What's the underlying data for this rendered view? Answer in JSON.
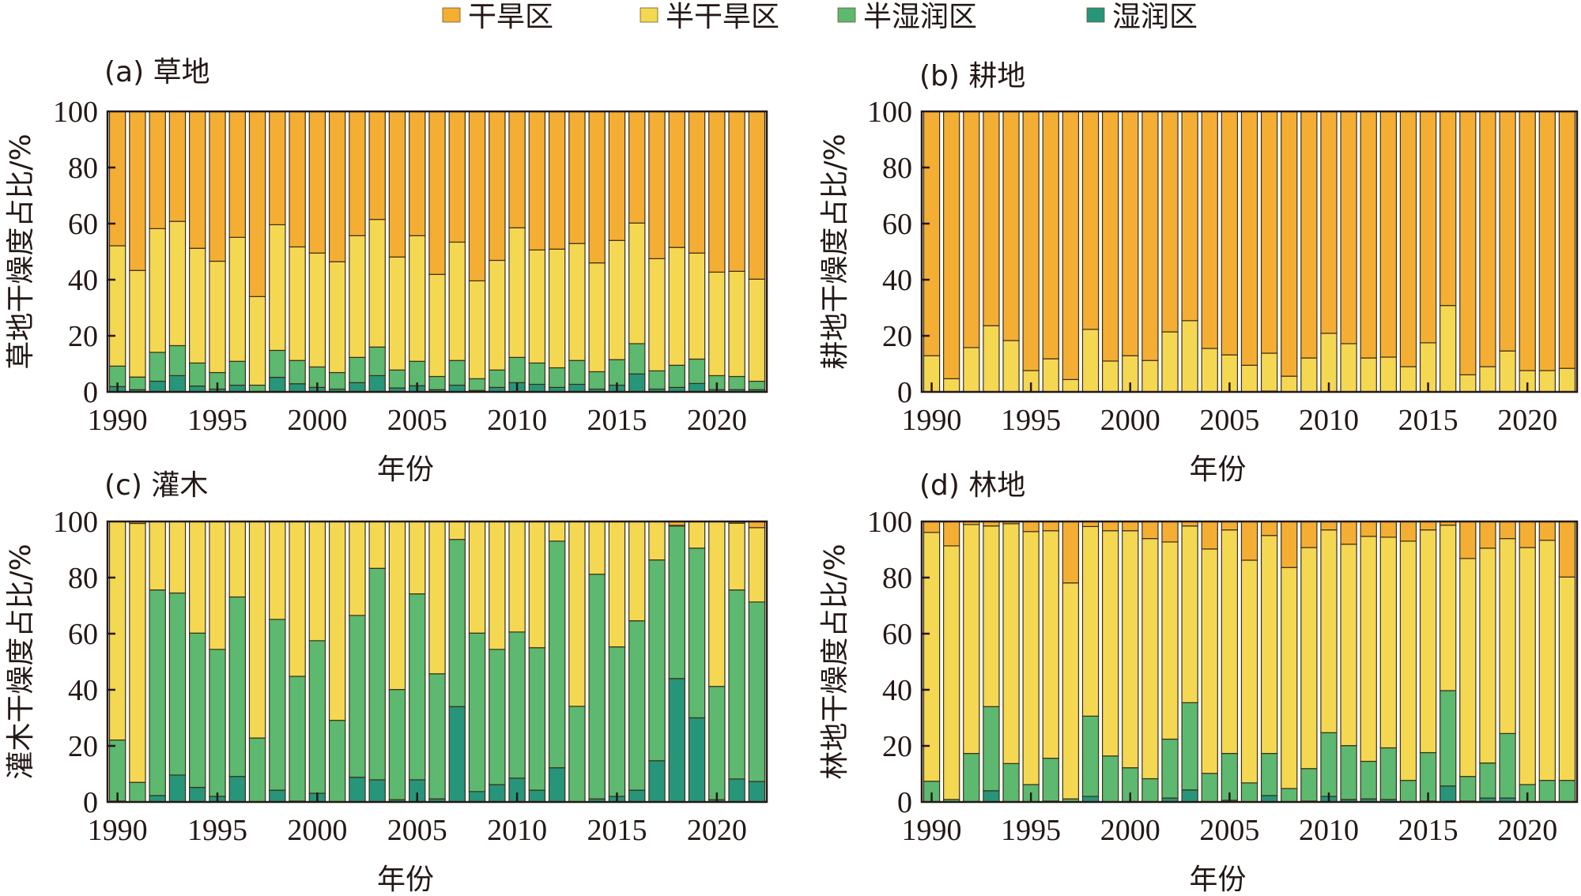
{
  "chart_data": {
    "type": "bar",
    "stacked": true,
    "legend": {
      "placement": "top-center",
      "entries": [
        {
          "name": "干旱区",
          "color": "#F4AE33"
        },
        {
          "name": "半干旱区",
          "color": "#F5D852"
        },
        {
          "name": "半湿润区",
          "color": "#5CB96F"
        },
        {
          "name": "湿润区",
          "color": "#279579"
        }
      ]
    },
    "years": [
      1990,
      1991,
      1992,
      1993,
      1994,
      1995,
      1996,
      1997,
      1998,
      1999,
      2000,
      2001,
      2002,
      2003,
      2004,
      2005,
      2006,
      2007,
      2008,
      2009,
      2010,
      2011,
      2012,
      2013,
      2014,
      2015,
      2016,
      2017,
      2018,
      2019,
      2020,
      2021,
      2022
    ],
    "x_ticks": [
      "1990",
      "1995",
      "2000",
      "2005",
      "2010",
      "2015",
      "2020"
    ],
    "y_ticks": [
      "0",
      "20",
      "40",
      "60",
      "80",
      "100"
    ],
    "ylim": [
      0,
      100
    ],
    "panels": [
      {
        "id": "a",
        "title": "(a) 草地",
        "xlabel": "年份",
        "ylabel": "草地干燥度占比/%",
        "series": [
          {
            "name": "湿润区",
            "values": [
              1.9,
              0.8,
              3.8,
              5.8,
              2.1,
              1.0,
              2.4,
              0,
              5.2,
              2.9,
              1.6,
              1.0,
              3.3,
              5.8,
              1.4,
              2.2,
              0.8,
              2.4,
              0.5,
              1.6,
              3.3,
              2.7,
              1.6,
              2.7,
              1.0,
              2.4,
              6.4,
              1.0,
              1.6,
              3.0,
              0.8,
              0.8,
              0.8
            ]
          },
          {
            "name": "半湿润区",
            "values": [
              7.3,
              4.5,
              10.3,
              10.7,
              8.2,
              5.9,
              8.5,
              2.4,
              9.6,
              8.3,
              7.3,
              5.9,
              9.0,
              10.2,
              6.4,
              8.7,
              4.7,
              8.8,
              4.2,
              6.2,
              9.0,
              7.6,
              7.0,
              8.5,
              6.2,
              9.1,
              10.8,
              6.5,
              7.9,
              8.7,
              5.0,
              4.7,
              3.0
            ]
          },
          {
            "name": "半干旱区",
            "values": [
              42.9,
              38.0,
              44.1,
              44.3,
              40.9,
              39.7,
              44.2,
              31.6,
              44.8,
              40.5,
              40.6,
              39.5,
              43.4,
              45.5,
              40.3,
              44.8,
              36.4,
              42.2,
              34.9,
              39.1,
              46.2,
              40.3,
              42.3,
              41.7,
              38.8,
              42.5,
              43.0,
              40.0,
              42.0,
              37.8,
              36.9,
              37.5,
              36.4
            ]
          },
          {
            "name": "干旱区",
            "values": [
              47.9,
              56.7,
              41.8,
              39.2,
              48.8,
              53.4,
              44.9,
              66.0,
              40.4,
              48.3,
              50.5,
              53.6,
              44.3,
              38.5,
              51.9,
              44.3,
              58.1,
              46.6,
              60.4,
              53.1,
              41.5,
              49.4,
              49.1,
              47.1,
              54.0,
              46.0,
              39.8,
              52.5,
              48.5,
              50.5,
              57.3,
              57.0,
              59.8
            ]
          }
        ]
      },
      {
        "id": "b",
        "title": "(b) 耕地",
        "xlabel": "年份",
        "ylabel": "耕地干燥度占比/%",
        "series": [
          {
            "name": "湿润区",
            "values": [
              0,
              0,
              0,
              0,
              0,
              0,
              0,
              0,
              0,
              0,
              0,
              0,
              0,
              0,
              0,
              0,
              0,
              0,
              0,
              0,
              0,
              0,
              0,
              0,
              0,
              0,
              0,
              0,
              0,
              0,
              0,
              0,
              0
            ]
          },
          {
            "name": "半湿润区",
            "values": [
              0,
              0,
              0,
              0,
              0,
              0,
              0,
              0,
              0,
              0,
              0,
              0,
              0,
              0,
              0,
              0,
              0,
              0.3,
              0,
              0,
              0,
              0,
              0,
              0,
              0,
              0,
              0,
              0,
              0.2,
              0,
              0,
              0,
              0
            ]
          },
          {
            "name": "半干旱区",
            "values": [
              12.9,
              4.7,
              15.8,
              23.6,
              18.3,
              7.6,
              11.8,
              4.4,
              22.3,
              11.0,
              12.9,
              11.2,
              21.4,
              25.4,
              15.5,
              13.2,
              9.5,
              13.5,
              5.6,
              12.1,
              20.9,
              17.2,
              12.1,
              12.4,
              9.0,
              17.5,
              30.8,
              6.1,
              8.8,
              14.6,
              7.6,
              7.6,
              8.4
            ]
          },
          {
            "name": "干旱区",
            "values": [
              87.1,
              95.3,
              84.2,
              76.4,
              81.7,
              92.4,
              88.2,
              95.6,
              77.7,
              89.0,
              87.1,
              88.8,
              78.6,
              74.6,
              84.5,
              86.8,
              90.5,
              86.2,
              94.4,
              87.9,
              79.1,
              82.8,
              87.9,
              87.6,
              91.0,
              82.5,
              69.2,
              93.9,
              91.0,
              85.4,
              92.4,
              92.4,
              91.6
            ]
          }
        ]
      },
      {
        "id": "c",
        "title": "(c) 灌木",
        "xlabel": "年份",
        "ylabel": "灌木干燥度占比/%",
        "series": [
          {
            "name": "湿润区",
            "values": [
              0.3,
              0,
              2.3,
              9.6,
              5.2,
              2.0,
              9.1,
              0,
              4.2,
              0.3,
              3.1,
              0,
              8.8,
              7.9,
              0.8,
              7.9,
              1.1,
              34.0,
              3.7,
              6.2,
              8.5,
              4.2,
              12.2,
              0,
              1.1,
              2.0,
              4.2,
              14.7,
              44.0,
              30.0,
              0.8,
              8.2,
              7.3
            ]
          },
          {
            "name": "半湿润区",
            "values": [
              21.8,
              7.0,
              73.3,
              64.9,
              55.0,
              52.4,
              64.0,
              22.8,
              60.9,
              44.5,
              54.4,
              29.1,
              57.7,
              75.4,
              39.3,
              66.3,
              44.6,
              59.6,
              56.5,
              48.2,
              52.1,
              50.8,
              80.8,
              34.1,
              80.1,
              53.3,
              60.4,
              71.6,
              54.4,
              60.5,
              40.4,
              67.4,
              64.0
            ]
          },
          {
            "name": "半干旱区",
            "values": [
              77.9,
              92.3,
              24.4,
              25.5,
              39.8,
              45.6,
              26.9,
              77.2,
              34.9,
              55.2,
              42.5,
              70.9,
              33.5,
              16.7,
              59.9,
              25.8,
              54.3,
              6.4,
              39.8,
              45.6,
              39.4,
              45.0,
              7.0,
              65.9,
              18.8,
              44.7,
              35.4,
              13.7,
              0.2,
              9.5,
              58.8,
              23.8,
              26.5
            ]
          },
          {
            "name": "干旱区",
            "values": [
              0,
              0.7,
              0,
              0,
              0,
              0,
              0,
              0,
              0,
              0,
              0,
              0,
              0,
              0,
              0,
              0,
              0,
              0,
              0,
              0,
              0,
              0,
              0,
              0,
              0,
              0,
              0,
              0,
              1.4,
              0,
              0,
              0.6,
              2.2
            ]
          }
        ]
      },
      {
        "id": "d",
        "title": "(d) 林地",
        "xlabel": "年份",
        "ylabel": "林地干燥度占比/%",
        "series": [
          {
            "name": "湿润区",
            "values": [
              0,
              0,
              0,
              4.0,
              0,
              0,
              0.3,
              0,
              2.0,
              0,
              0,
              0,
              1.4,
              4.3,
              0,
              0.6,
              0,
              2.3,
              0,
              0.3,
              2.0,
              0.9,
              1.1,
              0.9,
              0,
              0.3,
              5.7,
              0.3,
              1.4,
              1.4,
              0,
              0,
              0
            ]
          },
          {
            "name": "半湿润区",
            "values": [
              7.4,
              0.9,
              17.3,
              30.0,
              13.7,
              6.2,
              15.3,
              1.1,
              28.6,
              16.4,
              12.2,
              8.3,
              21.0,
              31.1,
              10.2,
              16.7,
              6.8,
              15.0,
              4.8,
              11.6,
              22.7,
              19.2,
              13.4,
              18.4,
              7.7,
              17.3,
              34.0,
              8.8,
              12.5,
              23.0,
              6.2,
              7.7,
              7.7
            ]
          },
          {
            "name": "半干旱区",
            "values": [
              88.7,
              90.4,
              81.6,
              64.4,
              85.5,
              90.2,
              81.1,
              77.0,
              67.6,
              80.3,
              84.5,
              85.6,
              70.3,
              63.0,
              80.0,
              79.7,
              79.4,
              77.7,
              78.8,
              78.8,
              72.3,
              71.8,
              80.2,
              75.1,
              85.3,
              79.4,
              59.0,
              77.7,
              76.6,
              69.5,
              84.5,
              85.6,
              72.5
            ]
          },
          {
            "name": "干旱区",
            "values": [
              3.9,
              8.7,
              1.1,
              1.6,
              0.8,
              3.6,
              3.3,
              21.9,
              1.8,
              3.3,
              3.3,
              6.1,
              7.3,
              1.6,
              9.8,
              3.0,
              13.8,
              5.0,
              16.4,
              9.3,
              3.0,
              8.1,
              5.3,
              5.6,
              7.0,
              3.0,
              1.3,
              13.2,
              9.5,
              6.1,
              9.3,
              6.7,
              19.8
            ]
          }
        ]
      }
    ]
  }
}
